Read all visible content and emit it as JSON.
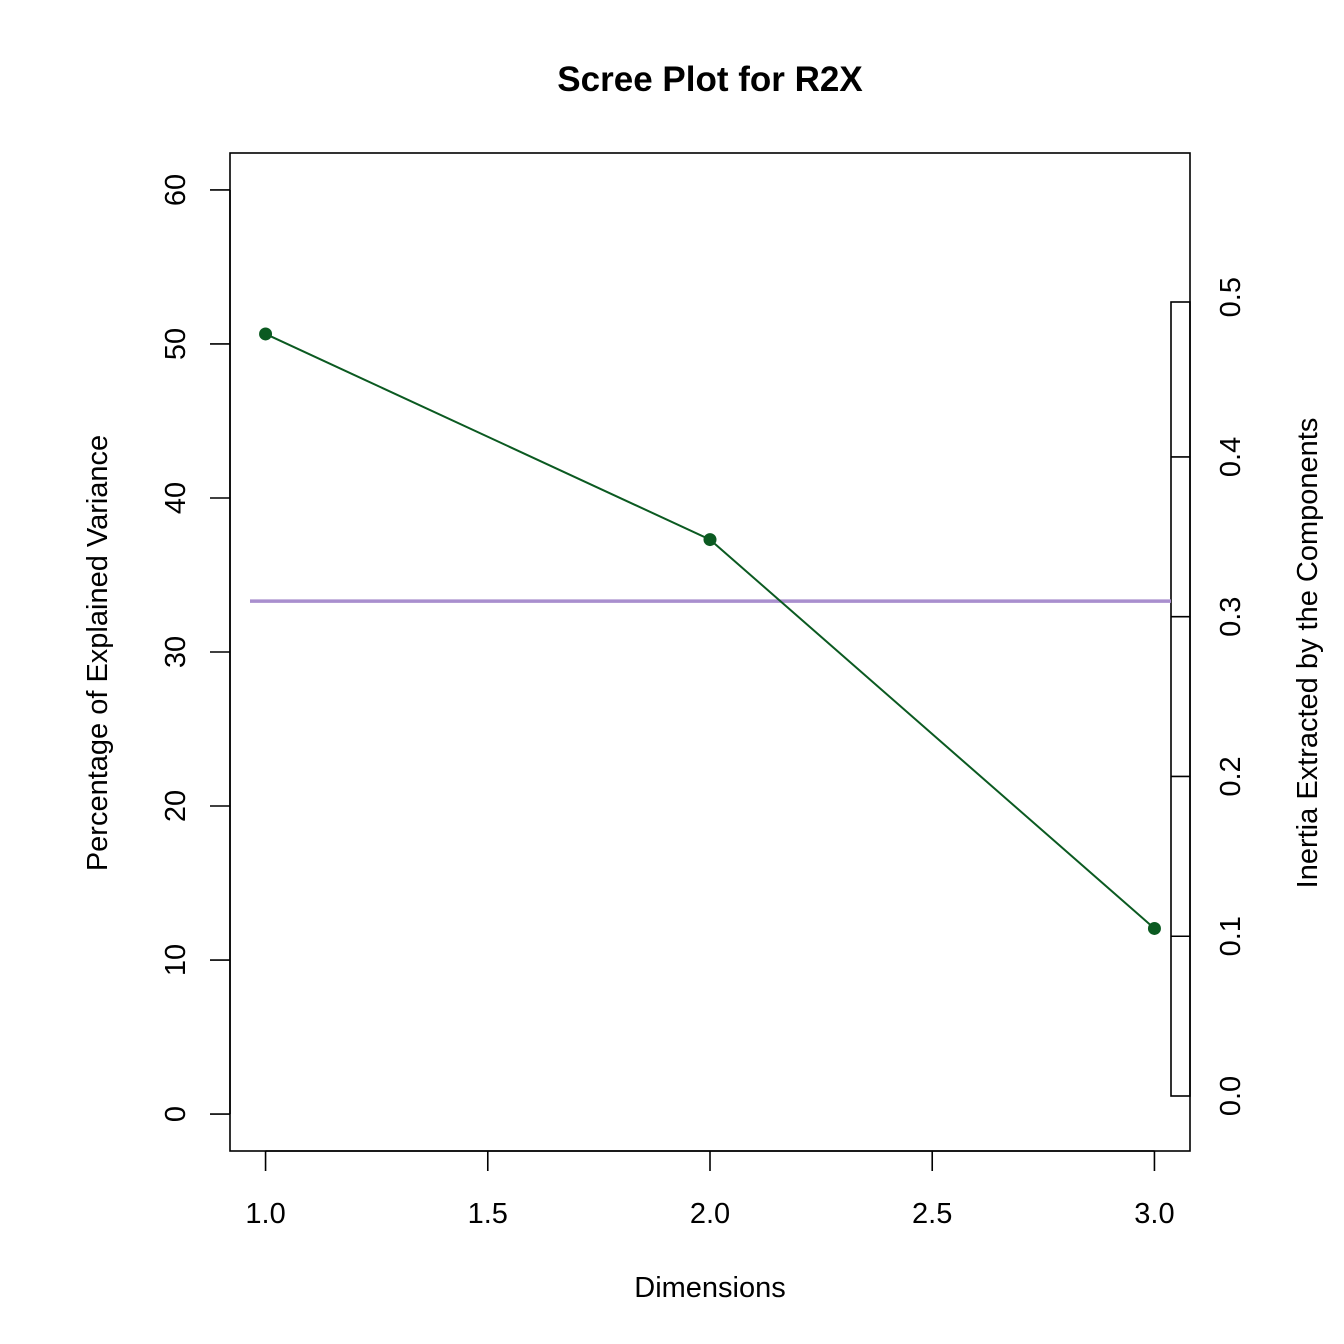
{
  "chart_data": {
    "type": "line",
    "title": "Scree Plot for R2X",
    "xlabel": "Dimensions",
    "ylabel": "Percentage of Explained Variance",
    "y2label": "Inertia Extracted by the Components",
    "x": [
      1,
      2,
      3
    ],
    "series": [
      {
        "values": [
          50.65,
          37.3,
          12.05
        ],
        "color": "#0b5a21"
      }
    ],
    "reference_line": {
      "y": 33.3,
      "color": "#a98fce"
    },
    "xlim": [
      0.92,
      3.08
    ],
    "ylim": [
      -2.4,
      62.4
    ],
    "xticks": [
      "1.0",
      "1.5",
      "2.0",
      "2.5",
      "3.0"
    ],
    "xtick_values": [
      1.0,
      1.5,
      2.0,
      2.5,
      3.0
    ],
    "yticks": [
      "0",
      "10",
      "20",
      "30",
      "40",
      "50",
      "60"
    ],
    "ytick_values": [
      0,
      10,
      20,
      30,
      40,
      50,
      60
    ],
    "y2ticks": [
      "0.0",
      "0.1",
      "0.2",
      "0.3",
      "0.4",
      "0.5"
    ],
    "y2tick_values": [
      0.0,
      0.1,
      0.2,
      0.3,
      0.4,
      0.5
    ],
    "y2_bar": {
      "min": 0.0,
      "max": 0.497
    },
    "grid": false,
    "legend": "none"
  }
}
